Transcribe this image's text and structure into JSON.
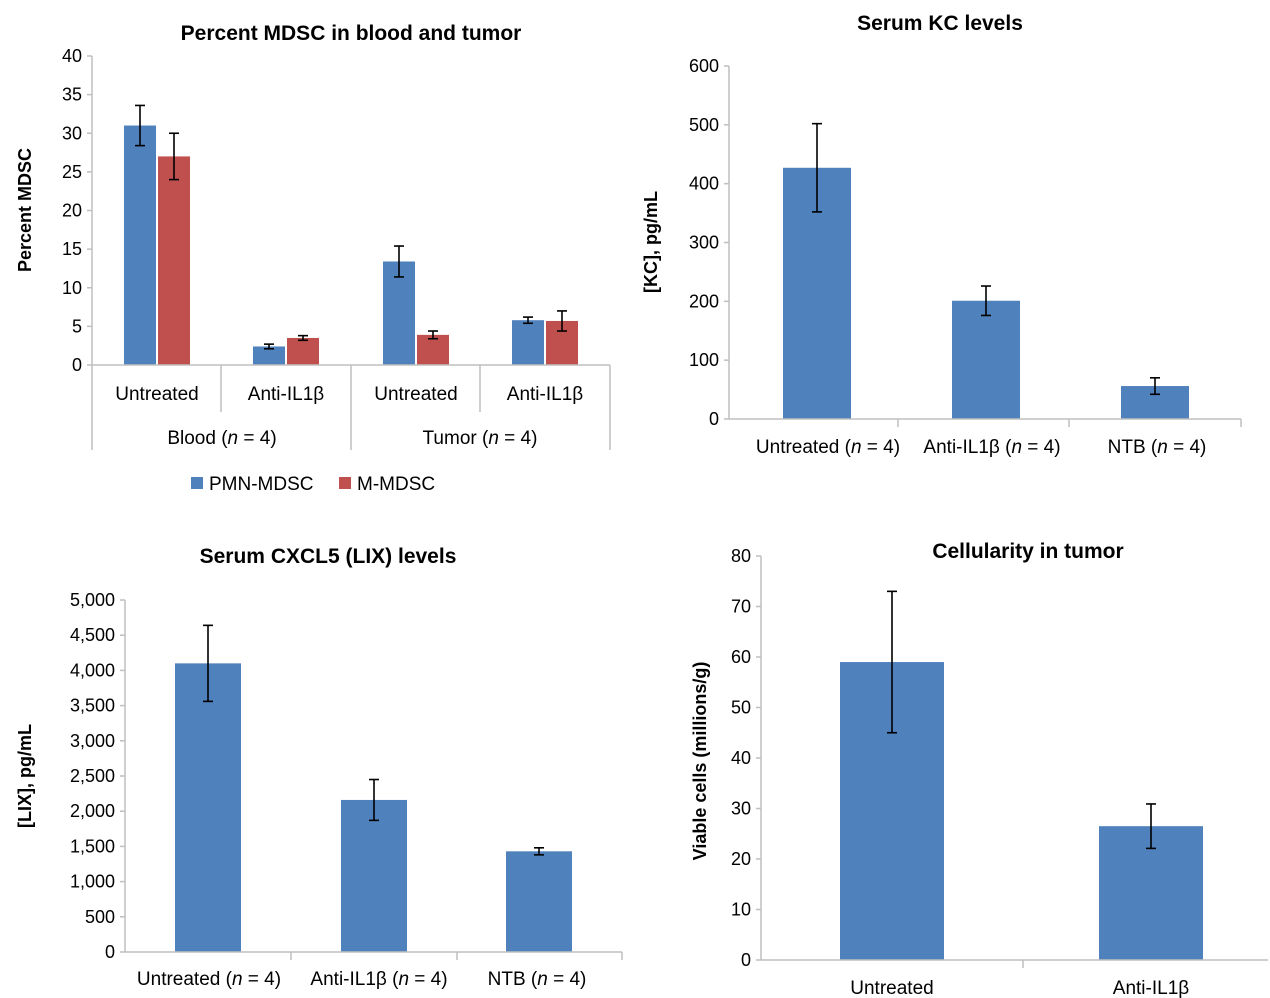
{
  "colors": {
    "blue": "#4f81bd",
    "red": "#c0504d",
    "axis": "#bfbfbf",
    "text": "#000000"
  },
  "chart_data": [
    {
      "type": "bar",
      "title": "Percent MDSC in blood and tumor",
      "ylabel": "Percent MDSC",
      "xlabel": "",
      "ylim": [
        0,
        40
      ],
      "yticks": [
        "0",
        "5",
        "10",
        "15",
        "20",
        "25",
        "30",
        "35",
        "40"
      ],
      "categories": [
        "Untreated",
        "Anti-IL1β",
        "Untreated",
        "Anti-IL1β"
      ],
      "groups": [
        {
          "label_prefix": "Blood (",
          "n_italic": "n",
          "label_suffix": " = 4)"
        },
        {
          "label_prefix": "Tumor (",
          "n_italic": "n",
          "label_suffix": " = 4)"
        }
      ],
      "series": [
        {
          "name": "PMN-MDSC",
          "color": "#4f81bd",
          "values": [
            31,
            2.4,
            13.4,
            5.8
          ],
          "errors": [
            2.6,
            0.3,
            2.0,
            0.4
          ]
        },
        {
          "name": "M-MDSC",
          "color": "#c0504d",
          "values": [
            27,
            3.5,
            3.9,
            5.7
          ],
          "errors": [
            3.0,
            0.3,
            0.5,
            1.3
          ]
        }
      ],
      "legend": "bottom",
      "grid": false
    },
    {
      "type": "bar",
      "title": "Serum KC levels",
      "ylabel": "[KC], pg/mL",
      "xlabel": "",
      "ylim": [
        0,
        600
      ],
      "yticks": [
        "0",
        "100",
        "200",
        "300",
        "400",
        "500",
        "600"
      ],
      "categories": [
        {
          "pre": "Untreated (",
          "n": "n",
          "post": " = 4)"
        },
        {
          "pre": "Anti-IL1β (",
          "n": "n",
          "post": " = 4)"
        },
        {
          "pre": "NTB (",
          "n": "n",
          "post": " = 4)"
        }
      ],
      "series": [
        {
          "color": "#4f81bd",
          "values": [
            427,
            201,
            56
          ],
          "errors": [
            75,
            25,
            14
          ]
        }
      ],
      "grid": false
    },
    {
      "type": "bar",
      "title": "Serum CXCL5 (LIX) levels",
      "ylabel": "[LIX], pg/mL",
      "xlabel": "",
      "ylim": [
        0,
        5000
      ],
      "yticks": [
        "0",
        "500",
        "1,000",
        "1,500",
        "2,000",
        "2,500",
        "3,000",
        "3,500",
        "4,000",
        "4,500",
        "5,000"
      ],
      "categories": [
        {
          "pre": "Untreated (",
          "n": "n",
          "post": " = 4)"
        },
        {
          "pre": "Anti-IL1β (",
          "n": "n",
          "post": " = 4)"
        },
        {
          "pre": "NTB (",
          "n": "n",
          "post": " = 4)"
        }
      ],
      "series": [
        {
          "color": "#4f81bd",
          "values": [
            4100,
            2160,
            1430
          ],
          "errors": [
            540,
            290,
            50
          ]
        }
      ],
      "grid": false
    },
    {
      "type": "bar",
      "title": "Cellularity in tumor",
      "ylabel": "Viable cells (millions/g)",
      "xlabel": "",
      "ylim": [
        0,
        80
      ],
      "yticks": [
        "0",
        "10",
        "20",
        "30",
        "40",
        "50",
        "60",
        "70",
        "80"
      ],
      "categories": [
        "Untreated",
        "Anti-IL1β"
      ],
      "series": [
        {
          "color": "#4f81bd",
          "values": [
            59,
            26.5
          ],
          "errors": [
            14,
            4.4
          ]
        }
      ],
      "grid": false
    }
  ]
}
